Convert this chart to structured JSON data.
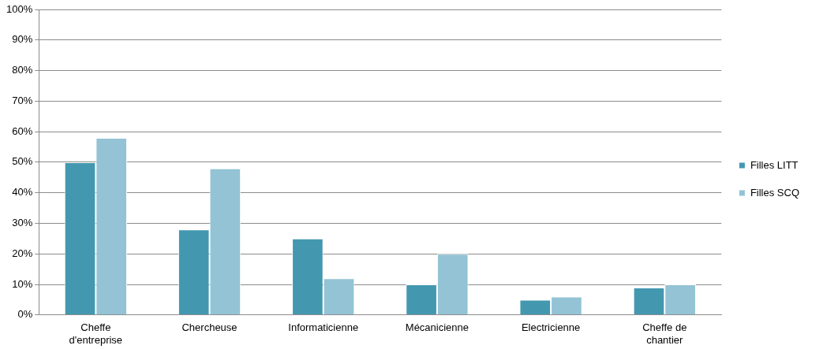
{
  "chart_data": {
    "type": "bar",
    "categories": [
      "Cheffe d'entreprise",
      "Chercheuse",
      "Informaticienne",
      "Mécanicienne",
      "Electricienne",
      "Cheffe de chantier"
    ],
    "series": [
      {
        "name": "Filles LITT",
        "color": "#4398b0",
        "values": [
          50,
          28,
          25,
          10,
          5,
          9
        ]
      },
      {
        "name": "Filles SCQ",
        "color": "#93c3d5",
        "values": [
          58,
          48,
          12,
          20,
          6,
          10
        ]
      }
    ],
    "ylim": [
      0,
      100
    ],
    "yticks": [
      {
        "value": 0,
        "label": "0%"
      },
      {
        "value": 10,
        "label": "10%"
      },
      {
        "value": 20,
        "label": "20%"
      },
      {
        "value": 30,
        "label": "30%"
      },
      {
        "value": 40,
        "label": "40%"
      },
      {
        "value": 50,
        "label": "50%"
      },
      {
        "value": 60,
        "label": "60%"
      },
      {
        "value": 70,
        "label": "70%"
      },
      {
        "value": 80,
        "label": "80%"
      },
      {
        "value": 90,
        "label": "90%"
      },
      {
        "value": 100,
        "label": "100%"
      }
    ],
    "grid": "y",
    "legend": "right"
  }
}
